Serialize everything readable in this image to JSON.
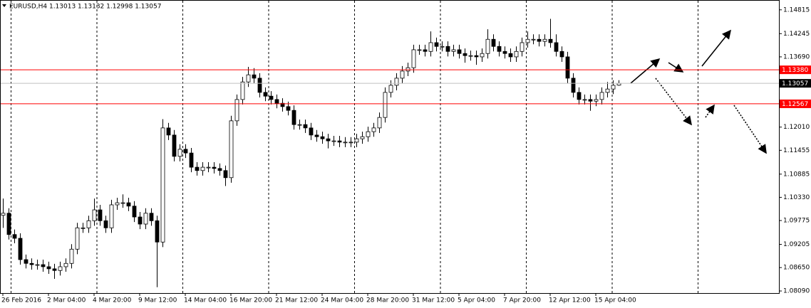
{
  "chart_data": {
    "type": "candlestick",
    "title": "EURUSD,H4  1.13013 1.13132 1.12998 1.13057",
    "xticks": [
      {
        "value": 0,
        "label": "26 Feb 2016"
      },
      {
        "value": 8,
        "label": "2 Mar 04:00"
      },
      {
        "value": 16,
        "label": "4 Mar 20:00"
      },
      {
        "value": 24,
        "label": "9 Mar 12:00"
      },
      {
        "value": 32,
        "label": "14 Mar 04:00"
      },
      {
        "value": 40,
        "label": "16 Mar 20:00"
      },
      {
        "value": 48,
        "label": "21 Mar 12:00"
      },
      {
        "value": 56,
        "label": "24 Mar 04:00"
      },
      {
        "value": 64,
        "label": "28 Mar 20:00"
      },
      {
        "value": 72,
        "label": "31 Mar 12:00"
      },
      {
        "value": 80,
        "label": "5 Apr 04:00"
      },
      {
        "value": 88,
        "label": "7 Apr 20:00"
      },
      {
        "value": 96,
        "label": "12 Apr 12:00"
      },
      {
        "value": 104,
        "label": "15 Apr 04:00"
      }
    ],
    "open": [
      1.099,
      1.0995,
      1.0944,
      1.0935,
      1.0884,
      1.0875,
      1.0872,
      1.0872,
      1.0867,
      1.0862,
      1.0858,
      1.0867,
      1.0875,
      1.0909,
      1.096,
      1.096,
      1.0977,
      1.1003,
      1.0977,
      1.096,
      1.1015,
      1.102,
      1.102,
      1.1012,
      1.0986,
      1.0969,
      1.0995,
      1.0977,
      1.0926,
      1.1199,
      1.1182,
      1.1131,
      1.1148,
      1.1139,
      1.1105,
      1.1097,
      1.1105,
      1.1105,
      1.1102,
      1.1097,
      1.108,
      1.1216,
      1.1267,
      1.1309,
      1.1326,
      1.1318,
      1.1284,
      1.1275,
      1.1267,
      1.1258,
      1.125,
      1.1241,
      1.1207,
      1.1207,
      1.1199,
      1.1182,
      1.1178,
      1.1173,
      1.1168,
      1.1168,
      1.1165,
      1.1165,
      1.1165,
      1.1173,
      1.1178,
      1.119,
      1.1199,
      1.1224,
      1.1284,
      1.1301,
      1.1318,
      1.1335,
      1.1343,
      1.1386,
      1.1386,
      1.1382,
      1.1403,
      1.1394,
      1.1394,
      1.1382,
      1.1386,
      1.1377,
      1.1372,
      1.1372,
      1.1369,
      1.1377,
      1.1411,
      1.1394,
      1.1382,
      1.1377,
      1.1369,
      1.1382,
      1.1403,
      1.1411,
      1.1411,
      1.1406,
      1.1411,
      1.1403,
      1.1382,
      1.1369,
      1.1318,
      1.1284,
      1.1267,
      1.1267,
      1.1263,
      1.1267,
      1.1284,
      1.1292,
      1.13013
    ],
    "high": [
      1.103,
      1.1007,
      1.0956,
      1.0947,
      1.0896,
      1.0887,
      1.0884,
      1.0884,
      1.0879,
      1.0874,
      1.0879,
      1.0887,
      1.0921,
      1.0972,
      1.0972,
      1.0989,
      1.103,
      1.1015,
      1.0989,
      1.1027,
      1.1032,
      1.104,
      1.1032,
      1.1024,
      1.0998,
      1.1007,
      1.1007,
      1.0989,
      1.122,
      1.1211,
      1.1194,
      1.116,
      1.116,
      1.1151,
      1.1117,
      1.1117,
      1.1117,
      1.1117,
      1.1114,
      1.1109,
      1.1228,
      1.1279,
      1.1321,
      1.1345,
      1.1342,
      1.133,
      1.1296,
      1.1287,
      1.1279,
      1.127,
      1.1262,
      1.1253,
      1.1219,
      1.1219,
      1.1211,
      1.1194,
      1.119,
      1.1185,
      1.118,
      1.118,
      1.1177,
      1.1177,
      1.1185,
      1.119,
      1.1202,
      1.1211,
      1.1236,
      1.1296,
      1.1313,
      1.133,
      1.1347,
      1.1355,
      1.1398,
      1.1398,
      1.1398,
      1.143,
      1.1415,
      1.1406,
      1.1406,
      1.1398,
      1.1398,
      1.1389,
      1.1384,
      1.1384,
      1.1389,
      1.1435,
      1.1423,
      1.1406,
      1.1394,
      1.1389,
      1.1394,
      1.1415,
      1.143,
      1.1423,
      1.1423,
      1.1423,
      1.146,
      1.1423,
      1.1394,
      1.1381,
      1.133,
      1.1296,
      1.1279,
      1.1279,
      1.1279,
      1.1296,
      1.1309,
      1.1313,
      1.13132
    ],
    "low": [
      1.096,
      1.0932,
      1.0923,
      1.0872,
      1.0863,
      1.086,
      1.086,
      1.0855,
      1.085,
      1.0838,
      1.0846,
      1.0855,
      1.0863,
      1.0897,
      1.0948,
      1.0948,
      1.0965,
      1.0965,
      1.0948,
      1.0948,
      1.1003,
      1.1008,
      1.1,
      1.0974,
      1.0957,
      1.0957,
      1.0965,
      1.0818,
      1.0914,
      1.117,
      1.1119,
      1.1119,
      1.1127,
      1.1093,
      1.1085,
      1.1085,
      1.1093,
      1.109,
      1.1085,
      1.106,
      1.1068,
      1.1204,
      1.1255,
      1.1297,
      1.1306,
      1.1272,
      1.1263,
      1.1255,
      1.1246,
      1.1238,
      1.1229,
      1.1195,
      1.1195,
      1.1187,
      1.117,
      1.1166,
      1.1161,
      1.115,
      1.1156,
      1.1153,
      1.1153,
      1.1153,
      1.1153,
      1.1161,
      1.1166,
      1.1178,
      1.1187,
      1.1212,
      1.1272,
      1.1289,
      1.1306,
      1.1323,
      1.1331,
      1.1374,
      1.137,
      1.137,
      1.1382,
      1.1382,
      1.137,
      1.137,
      1.1365,
      1.1355,
      1.136,
      1.135,
      1.1357,
      1.1365,
      1.1382,
      1.137,
      1.1365,
      1.1357,
      1.1357,
      1.137,
      1.1391,
      1.1399,
      1.1394,
      1.1394,
      1.1391,
      1.137,
      1.1357,
      1.1306,
      1.1272,
      1.1255,
      1.1255,
      1.124,
      1.1251,
      1.1255,
      1.1272,
      1.128,
      1.12998
    ],
    "close": [
      1.0995,
      1.0944,
      1.0935,
      1.0884,
      1.0875,
      1.0872,
      1.0872,
      1.0867,
      1.0862,
      1.0858,
      1.0867,
      1.0875,
      1.0909,
      1.096,
      1.096,
      1.0977,
      1.1003,
      1.0977,
      1.096,
      1.1015,
      1.102,
      1.102,
      1.1012,
      1.0986,
      1.0969,
      1.0995,
      1.0977,
      1.0926,
      1.1199,
      1.1182,
      1.1131,
      1.1148,
      1.1139,
      1.1105,
      1.1097,
      1.1105,
      1.1105,
      1.1102,
      1.1097,
      1.108,
      1.1216,
      1.1267,
      1.1309,
      1.1326,
      1.1318,
      1.1284,
      1.1275,
      1.1267,
      1.1258,
      1.125,
      1.1241,
      1.1207,
      1.1207,
      1.1199,
      1.1182,
      1.1178,
      1.1173,
      1.1168,
      1.1168,
      1.1165,
      1.1165,
      1.1165,
      1.1173,
      1.1178,
      1.119,
      1.1199,
      1.1224,
      1.1284,
      1.1301,
      1.1318,
      1.1335,
      1.1343,
      1.1386,
      1.1386,
      1.1382,
      1.1403,
      1.1394,
      1.1394,
      1.1382,
      1.1386,
      1.1377,
      1.1372,
      1.1372,
      1.1369,
      1.1377,
      1.1411,
      1.1394,
      1.1382,
      1.1377,
      1.1369,
      1.1382,
      1.1403,
      1.1411,
      1.1411,
      1.1406,
      1.1411,
      1.1403,
      1.1382,
      1.1369,
      1.1318,
      1.1284,
      1.1267,
      1.1267,
      1.1263,
      1.1267,
      1.1284,
      1.1292,
      1.1301,
      1.13057
    ],
    "ylim": [
      1.0804,
      1.1505
    ],
    "yticks": [
      1.14815,
      1.14245,
      {
        "value": 1.1369,
        "label": "1.13690"
      },
      {
        "value": 1.1201,
        "label": "1.12010"
      },
      1.11455,
      1.10885,
      {
        "value": 1.1033,
        "label": "1.10330"
      },
      1.09775,
      {
        "value": 1.09205,
        "label": "1.09205"
      },
      {
        "value": 1.0865,
        "label": "1.08650"
      },
      {
        "value": 1.0809,
        "label": "1.08090"
      }
    ],
    "hlines": [
      {
        "value": 1.1338,
        "label": "1.13380",
        "color": "#ff0000"
      },
      {
        "value": 1.12567,
        "label": "1.12567",
        "color": "#ff0000"
      }
    ],
    "current": {
      "value": 1.13057,
      "label": "1.13057",
      "color": "#000000"
    }
  }
}
